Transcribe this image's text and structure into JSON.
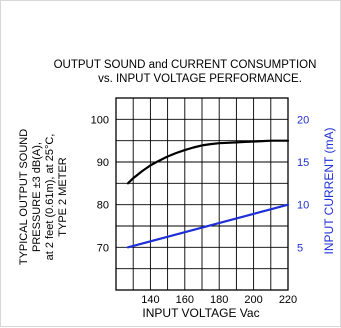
{
  "chart_data": {
    "type": "line",
    "title": "OUTPUT SOUND and CURRENT CONSUMPTION",
    "subtitle": "vs. INPUT VOLTAGE PERFORMANCE.",
    "xlabel": "INPUT VOLTAGE Vac",
    "ylabel_lines": [
      "TYPICAL OUTPUT SOUND",
      "PRESSURE ±3 dB(A),",
      "at 2 feet (0.61m), at 25°C,",
      "TYPE 2 METER"
    ],
    "y2label": "INPUT CURRENT (mA)",
    "xlim": [
      120,
      220
    ],
    "ylim": [
      60,
      105
    ],
    "y2lim": [
      0,
      22.5
    ],
    "x_ticks": [
      140,
      160,
      180,
      200,
      220
    ],
    "y_ticks": [
      70,
      80,
      90,
      100
    ],
    "y2_ticks": [
      5,
      10,
      15,
      20
    ],
    "grid": true,
    "series": [
      {
        "axis": "left",
        "color": "#000000",
        "x": [
          127,
          130,
          135,
          140,
          145,
          150,
          155,
          160,
          165,
          170,
          175,
          180,
          185,
          190,
          195,
          200,
          205,
          210,
          215,
          220
        ],
        "y": [
          85,
          86.2,
          87.8,
          89.2,
          90.3,
          91.3,
          92.1,
          92.8,
          93.4,
          93.9,
          94.2,
          94.4,
          94.5,
          94.6,
          94.7,
          94.8,
          94.9,
          95,
          95,
          95
        ]
      },
      {
        "axis": "right",
        "color": "#1f2fd6",
        "x": [
          127,
          220
        ],
        "y": [
          5,
          10
        ]
      }
    ]
  }
}
